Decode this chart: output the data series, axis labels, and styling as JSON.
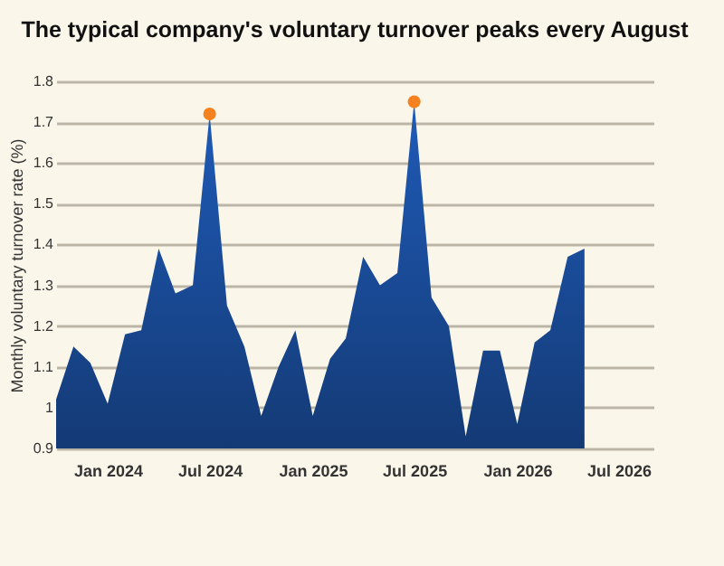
{
  "chart_data": {
    "type": "area",
    "title": "The typical company's voluntary turnover peaks every August",
    "ylabel": "Monthly voluntary turnover rate (%)",
    "x": [
      "2023-10",
      "2023-11",
      "2023-12",
      "2024-01",
      "2024-02",
      "2024-03",
      "2024-04",
      "2024-05",
      "2024-06",
      "2024-07",
      "2024-08",
      "2024-09",
      "2024-10",
      "2024-11",
      "2024-12",
      "2025-01",
      "2025-02",
      "2025-03",
      "2025-04",
      "2025-05",
      "2025-06",
      "2025-07",
      "2025-08",
      "2025-09",
      "2025-10",
      "2025-11",
      "2025-12",
      "2026-01",
      "2026-02",
      "2026-03",
      "2026-04",
      "2026-05"
    ],
    "series": [
      {
        "color": "#1f5bb8",
        "values": [
          1.02,
          1.15,
          1.11,
          1.01,
          1.18,
          1.19,
          1.39,
          1.28,
          1.3,
          1.72,
          1.25,
          1.15,
          0.98,
          1.1,
          1.19,
          0.98,
          1.12,
          1.17,
          1.37,
          1.3,
          1.33,
          1.75,
          1.27,
          1.2,
          0.93,
          1.14,
          1.14,
          0.96,
          1.16,
          1.19,
          1.37,
          1.39
        ]
      },
      {
        "type": "scatter",
        "color": "#f5821f",
        "x": [
          "2024-07",
          "2025-07"
        ],
        "values": [
          1.72,
          1.75
        ]
      }
    ],
    "xlim": [
      "2023-10",
      "2026-09"
    ],
    "xticks": [
      {
        "value": "2024-01",
        "label": "Jan 2024"
      },
      {
        "value": "2024-07",
        "label": "Jul 2024"
      },
      {
        "value": "2025-01",
        "label": "Jan 2025"
      },
      {
        "value": "2025-07",
        "label": "Jul 2025"
      },
      {
        "value": "2026-01",
        "label": "Jan 2026"
      },
      {
        "value": "2026-07",
        "label": "Jul 2026"
      }
    ],
    "ylim": [
      0.9,
      1.8
    ],
    "yticks": [
      0.9,
      1,
      1.1,
      1.2,
      1.3,
      1.4,
      1.5,
      1.6,
      1.7,
      1.8
    ],
    "grid": "y"
  }
}
